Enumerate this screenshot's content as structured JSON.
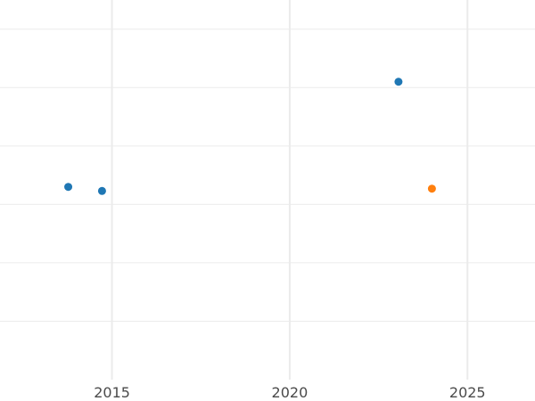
{
  "chart_data": {
    "type": "scatter",
    "title": "",
    "xlabel": "",
    "ylabel": "",
    "xlim": [
      2011.85,
      2026.9
    ],
    "ylim": [
      0.0,
      6.5
    ],
    "grid": true,
    "xticks": [
      2015,
      2020,
      2025
    ],
    "xtick_labels": [
      "2015",
      "2020",
      "2025"
    ],
    "ygrid_values": [
      1.0,
      2.0,
      3.0,
      4.0,
      5.0,
      6.0
    ],
    "series": [
      {
        "color": "#1f77b4",
        "points": [
          {
            "x": 2013.77,
            "y": 3.3
          },
          {
            "x": 2014.72,
            "y": 3.23
          },
          {
            "x": 2023.06,
            "y": 5.1
          }
        ]
      },
      {
        "color": "#ff7f0e",
        "points": [
          {
            "x": 2024.0,
            "y": 3.27
          }
        ]
      }
    ]
  }
}
